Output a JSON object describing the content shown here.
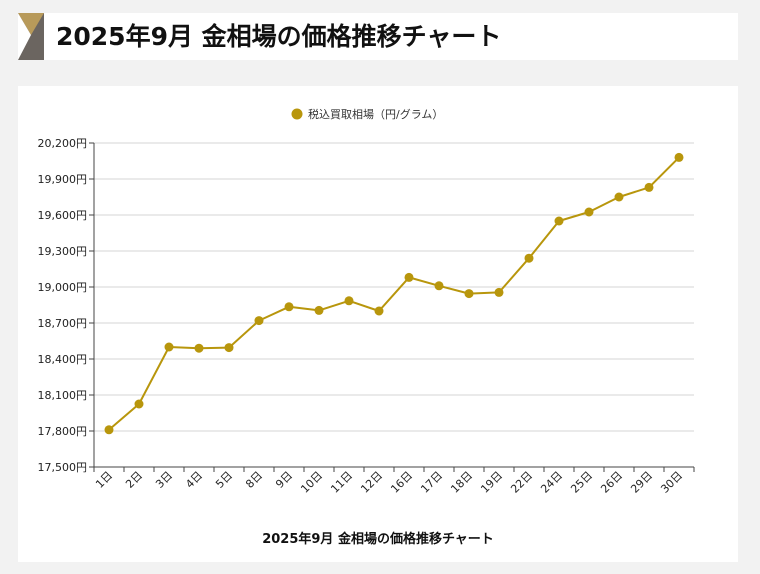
{
  "header": {
    "title": "2025年9月 金相場の価格推移チャート"
  },
  "chart_data": {
    "type": "line",
    "title": "2025年9月 金相場の価格推移チャート",
    "xlabel": "",
    "ylabel": "",
    "legend": {
      "position": "top-center"
    },
    "grid": true,
    "ylim": [
      17500,
      20200
    ],
    "yticks": [
      "17,500円",
      "17,800円",
      "18,100円",
      "18,400円",
      "18,700円",
      "19,000円",
      "19,300円",
      "19,600円",
      "19,900円",
      "20,200円"
    ],
    "categories": [
      "1日",
      "2日",
      "3日",
      "4日",
      "5日",
      "8日",
      "9日",
      "10日",
      "11日",
      "12日",
      "16日",
      "17日",
      "18日",
      "19日",
      "22日",
      "24日",
      "25日",
      "26日",
      "29日",
      "30日"
    ],
    "series": [
      {
        "name": "税込買取相場（円/グラム）",
        "color": "#b8960c",
        "values": [
          17810,
          18025,
          18500,
          18490,
          18495,
          18720,
          18835,
          18805,
          18885,
          18800,
          19080,
          19010,
          18945,
          18955,
          19240,
          19550,
          19625,
          19750,
          19830,
          20080
        ]
      }
    ]
  }
}
